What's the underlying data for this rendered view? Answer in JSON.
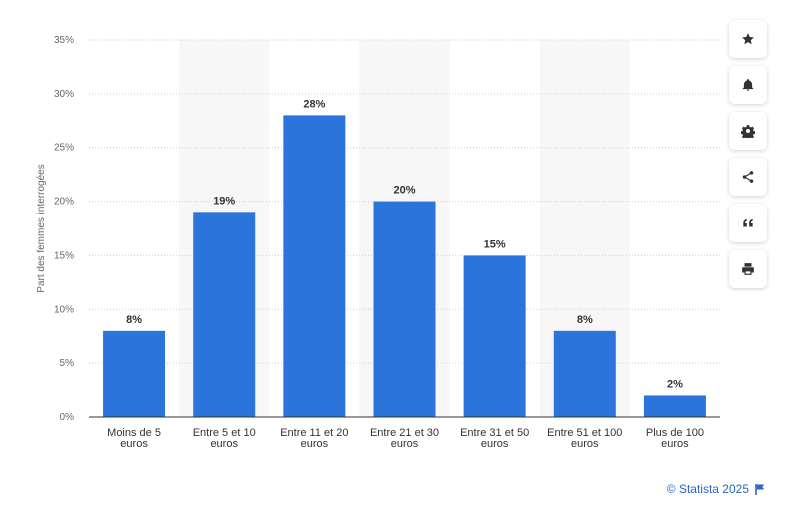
{
  "chart_data": {
    "type": "bar",
    "title": "",
    "xlabel": "",
    "ylabel": "Part des femmes interrogées",
    "ylim": [
      0,
      35
    ],
    "yticks": [
      0,
      5,
      10,
      15,
      20,
      25,
      30,
      35
    ],
    "ytick_labels": [
      "0%",
      "5%",
      "10%",
      "15%",
      "20%",
      "25%",
      "30%",
      "35%"
    ],
    "categories": [
      [
        "Moins de 5",
        "euros"
      ],
      [
        "Entre 5 et 10",
        "euros"
      ],
      [
        "Entre 11 et 20",
        "euros"
      ],
      [
        "Entre 21 et 30",
        "euros"
      ],
      [
        "Entre 31 et 50",
        "euros"
      ],
      [
        "Entre 51 et 100",
        "euros"
      ],
      [
        "Plus de 100",
        "euros"
      ]
    ],
    "values": [
      8,
      19,
      28,
      20,
      15,
      8,
      2
    ],
    "value_labels": [
      "8%",
      "19%",
      "28%",
      "20%",
      "15%",
      "8%",
      "2%"
    ],
    "bar_color": "#2a74db",
    "band_color": "#f7f7f7",
    "grid": true
  },
  "toolbar": {
    "icons": [
      "star-icon",
      "bell-icon",
      "gear-icon",
      "share-icon",
      "quote-icon",
      "print-icon"
    ]
  },
  "credit": {
    "text": "© Statista 2025"
  }
}
